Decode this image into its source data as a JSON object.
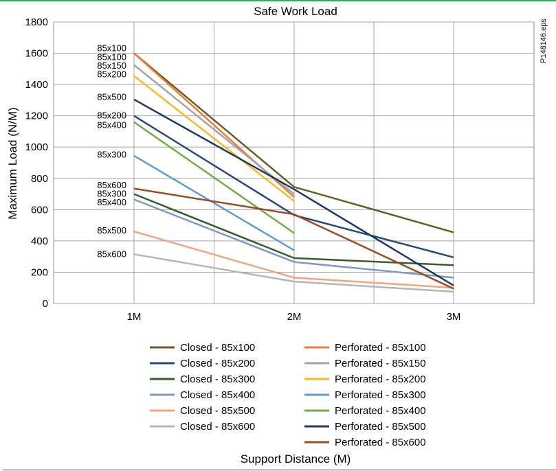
{
  "chart_data": {
    "type": "line",
    "title": "Safe Work Load",
    "xlabel": "Support Distance (M)",
    "ylabel": "Maximum Load (N/M)",
    "file_note": "P148146.eps",
    "categories": [
      "1M",
      "2M",
      "3M"
    ],
    "ylim": [
      0,
      1800
    ],
    "yticks": [
      0,
      200,
      400,
      600,
      800,
      1000,
      1200,
      1400,
      1600,
      1800
    ],
    "grid": true,
    "legend": "bottom",
    "series": [
      {
        "name": "Closed - 85x100",
        "color": "#6b5a24",
        "values": [
          1600,
          745,
          455
        ]
      },
      {
        "name": "Closed - 85x200",
        "color": "#27497a",
        "values": [
          1200,
          565,
          295
        ]
      },
      {
        "name": "Closed - 85x300",
        "color": "#375c2a",
        "values": [
          700,
          290,
          245
        ]
      },
      {
        "name": "Closed - 85x400",
        "color": "#7b97cc",
        "values": [
          665,
          265,
          165
        ]
      },
      {
        "name": "Closed - 85x500",
        "color": "#f2a57a",
        "values": [
          460,
          165,
          100
        ]
      },
      {
        "name": "Closed - 85x600",
        "color": "#b5b5b5",
        "values": [
          315,
          140,
          75
        ]
      },
      {
        "name": "Perforated - 85x100",
        "color": "#ee7d3b",
        "values": [
          1600,
          680,
          null
        ]
      },
      {
        "name": "Perforated - 85x150",
        "color": "#a3a3a3",
        "values": [
          1525,
          700,
          null
        ]
      },
      {
        "name": "Perforated - 85x200",
        "color": "#f7b92b",
        "values": [
          1455,
          655,
          null
        ]
      },
      {
        "name": "Perforated - 85x300",
        "color": "#5b9bd5",
        "values": [
          945,
          340,
          null
        ]
      },
      {
        "name": "Perforated - 85x400",
        "color": "#71ad47",
        "values": [
          1160,
          450,
          null
        ]
      },
      {
        "name": "Perforated - 85x500",
        "color": "#203864",
        "values": [
          1305,
          730,
          115
        ]
      },
      {
        "name": "Perforated - 85x600",
        "color": "#9c4a22",
        "values": [
          735,
          570,
          95
        ]
      }
    ],
    "start_labels": [
      {
        "text": "85x100",
        "value": 1630
      },
      {
        "text": "85x100",
        "value": 1575
      },
      {
        "text": "85x150",
        "value": 1520
      },
      {
        "text": "85x200",
        "value": 1465
      },
      {
        "text": "85x500",
        "value": 1320
      },
      {
        "text": "85x200",
        "value": 1200
      },
      {
        "text": "85x400",
        "value": 1140
      },
      {
        "text": "85x300",
        "value": 950
      },
      {
        "text": "85x600",
        "value": 755
      },
      {
        "text": "85x300",
        "value": 700
      },
      {
        "text": "85x400",
        "value": 645
      },
      {
        "text": "85x500",
        "value": 465
      },
      {
        "text": "85x600",
        "value": 315
      }
    ]
  }
}
